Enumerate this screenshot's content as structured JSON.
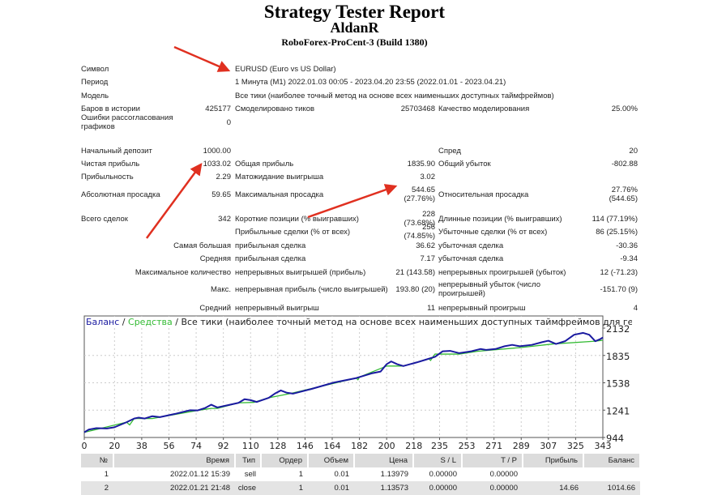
{
  "header": {
    "title": "Strategy Tester Report",
    "account": "AldanR",
    "server": "RoboForex-ProCent-3 (Build 1380)"
  },
  "summary": [
    {
      "type": "wide",
      "label": "Символ",
      "value": "EURUSD (Euro vs US Dollar)"
    },
    {
      "type": "wide",
      "label": "Период",
      "value": "1 Минута (M1) 2022.01.03 00:05 - 2023.04.20 23:55 (2022.01.01 - 2023.04.21)"
    },
    {
      "type": "wide",
      "label": "Модель",
      "value": "Все тики (наиболее точный метод на основе всех наименьших доступных таймфреймов)"
    },
    {
      "type": "six",
      "cells": [
        "Баров в истории",
        "425177",
        "Смоделировано тиков",
        "25703468",
        "Качество моделирования",
        "25.00%"
      ]
    },
    {
      "type": "six",
      "cells": [
        "Ошибки рассогласования графиков",
        "0",
        "",
        "",
        "",
        ""
      ]
    },
    {
      "type": "six",
      "cells": [
        "Начальный депозит",
        "1000.00",
        "",
        "",
        "Спред",
        "20"
      ]
    },
    {
      "type": "six",
      "cells": [
        "Чистая прибыль",
        "1033.02",
        "Общая прибыль",
        "1835.90",
        "Общий убыток",
        "-802.88"
      ]
    },
    {
      "type": "six",
      "cells": [
        "Прибыльность",
        "2.29",
        "Матожидание выигрыша",
        "3.02",
        "",
        ""
      ]
    },
    {
      "type": "six",
      "cells": [
        "Абсолютная просадка",
        "59.65",
        "Максимальная просадка",
        "544.65 (27.76%)",
        "Относительная просадка",
        "27.76% (544.65)"
      ]
    },
    {
      "type": "six",
      "cells": [
        "Всего сделок",
        "342",
        "Короткие позиции (% выигравших)",
        "228 (73.68%)",
        "Длинные позиции (% выигравших)",
        "114 (77.19%)"
      ]
    },
    {
      "type": "six",
      "cells": [
        "",
        "",
        "Прибыльные сделки (% от всех)",
        "256 (74.85%)",
        "Убыточные сделки (% от всех)",
        "86 (25.15%)"
      ]
    },
    {
      "type": "merged",
      "cells": [
        "Самая большая",
        "прибыльная сделка",
        "36.62",
        "убыточная сделка",
        "-30.36"
      ]
    },
    {
      "type": "merged",
      "cells": [
        "Средняя",
        "прибыльная сделка",
        "7.17",
        "убыточная сделка",
        "-9.34"
      ]
    },
    {
      "type": "merged",
      "cells": [
        "Максимальное количество",
        "непрерывных выигрышей (прибыль)",
        "21 (143.58)",
        "непрерывных проигрышей (убыток)",
        "12 (-71.23)"
      ]
    },
    {
      "type": "merged",
      "cells": [
        "Макс.",
        "непрерывная прибыль (число выигрышей)",
        "193.80 (20)",
        "непрерывный убыток (число проигрышей)",
        "-151.70 (9)"
      ]
    },
    {
      "type": "merged",
      "cells": [
        "Средний",
        "непрерывный выигрыш",
        "11",
        "непрерывный проигрыш",
        "4"
      ]
    }
  ],
  "chart_data": {
    "type": "line",
    "title": "Все тики (наиболее точный метод на основе всех наименьших доступных таймфреймов для генерации каждо",
    "legend": [
      {
        "name": "Баланс",
        "color": "#1a1aa0"
      },
      {
        "name": "Средства",
        "color": "#33bb33"
      }
    ],
    "separator": "/",
    "xticks": [
      "0",
      "20",
      "38",
      "56",
      "74",
      "92",
      "110",
      "128",
      "146",
      "164",
      "182",
      "200",
      "218",
      "235",
      "253",
      "271",
      "289",
      "307",
      "325",
      "343"
    ],
    "yticks": [
      "2132",
      "1835",
      "1538",
      "1241",
      "944"
    ],
    "xlim": [
      0,
      343
    ],
    "ylim": [
      944,
      2132
    ],
    "series": [
      {
        "name": "Баланс",
        "color": "#1a1aa0",
        "points": [
          [
            0,
            1000
          ],
          [
            3,
            1030
          ],
          [
            8,
            1045
          ],
          [
            15,
            1042
          ],
          [
            20,
            1055
          ],
          [
            28,
            1110
          ],
          [
            33,
            1150
          ],
          [
            36,
            1160
          ],
          [
            40,
            1150
          ],
          [
            45,
            1175
          ],
          [
            50,
            1165
          ],
          [
            60,
            1200
          ],
          [
            70,
            1240
          ],
          [
            75,
            1238
          ],
          [
            80,
            1265
          ],
          [
            84,
            1300
          ],
          [
            88,
            1270
          ],
          [
            95,
            1295
          ],
          [
            102,
            1320
          ],
          [
            106,
            1360
          ],
          [
            110,
            1350
          ],
          [
            114,
            1330
          ],
          [
            122,
            1375
          ],
          [
            126,
            1420
          ],
          [
            130,
            1455
          ],
          [
            134,
            1430
          ],
          [
            138,
            1420
          ],
          [
            150,
            1470
          ],
          [
            165,
            1540
          ],
          [
            180,
            1590
          ],
          [
            190,
            1640
          ],
          [
            196,
            1660
          ],
          [
            200,
            1740
          ],
          [
            203,
            1770
          ],
          [
            207,
            1740
          ],
          [
            211,
            1720
          ],
          [
            220,
            1760
          ],
          [
            226,
            1790
          ],
          [
            232,
            1820
          ],
          [
            237,
            1880
          ],
          [
            242,
            1885
          ],
          [
            248,
            1860
          ],
          [
            256,
            1880
          ],
          [
            262,
            1905
          ],
          [
            266,
            1895
          ],
          [
            272,
            1905
          ],
          [
            278,
            1935
          ],
          [
            283,
            1950
          ],
          [
            288,
            1935
          ],
          [
            296,
            1950
          ],
          [
            303,
            1980
          ],
          [
            307,
            1995
          ],
          [
            312,
            1960
          ],
          [
            318,
            1990
          ],
          [
            324,
            2060
          ],
          [
            330,
            2080
          ],
          [
            334,
            2060
          ],
          [
            338,
            1990
          ],
          [
            341,
            2010
          ],
          [
            343,
            2030
          ]
        ]
      },
      {
        "name": "Средства",
        "color": "#33bb33",
        "points": [
          [
            0,
            1000
          ],
          [
            28,
            1110
          ],
          [
            30,
            1080
          ],
          [
            33,
            1150
          ],
          [
            45,
            1150
          ],
          [
            75,
            1238
          ],
          [
            84,
            1260
          ],
          [
            88,
            1260
          ],
          [
            102,
            1320
          ],
          [
            112,
            1325
          ],
          [
            122,
            1375
          ],
          [
            136,
            1420
          ],
          [
            180,
            1590
          ],
          [
            181,
            1570
          ],
          [
            182,
            1600
          ],
          [
            200,
            1720
          ],
          [
            211,
            1720
          ],
          [
            228,
            1800
          ],
          [
            229,
            1780
          ],
          [
            232,
            1850
          ],
          [
            248,
            1850
          ],
          [
            260,
            1880
          ],
          [
            288,
            1920
          ],
          [
            310,
            1960
          ],
          [
            338,
            1990
          ],
          [
            343,
            2000
          ]
        ]
      }
    ]
  },
  "trades": {
    "columns": [
      "№",
      "Время",
      "Тип",
      "Ордер",
      "Объем",
      "Цена",
      "S / L",
      "T / P",
      "Прибыль",
      "Баланс"
    ],
    "rows": [
      [
        "1",
        "2022.01.12 15:39",
        "sell",
        "1",
        "0.01",
        "1.13979",
        "0.00000",
        "0.00000",
        "",
        ""
      ],
      [
        "2",
        "2022.01.21 21:48",
        "close",
        "1",
        "0.01",
        "1.13573",
        "0.00000",
        "0.00000",
        "14.66",
        "1014.66"
      ]
    ]
  },
  "annotation_color": "#e03020"
}
